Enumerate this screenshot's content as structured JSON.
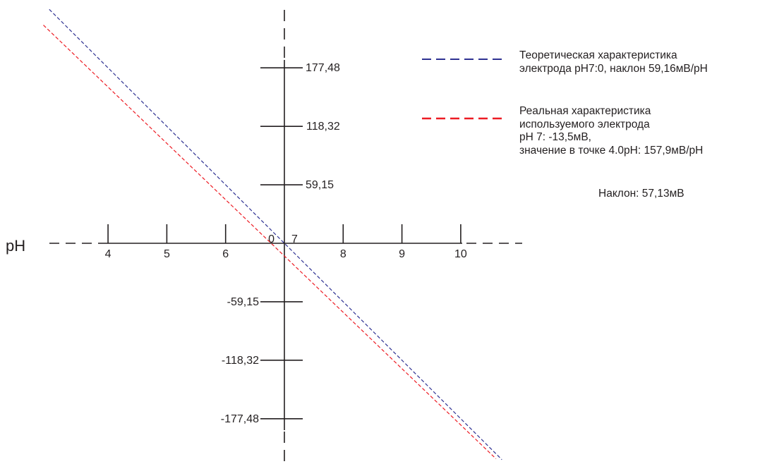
{
  "chart_data": {
    "type": "line",
    "title": "",
    "xlabel": "pH",
    "ylabel": "",
    "x_ticks": [
      4,
      5,
      6,
      7,
      8,
      9,
      10
    ],
    "x_tick_labels": [
      "4",
      "5",
      "6",
      "7",
      "8",
      "9",
      "10"
    ],
    "y_ticks": [
      177.48,
      118.32,
      59.15,
      -59.15,
      -118.32,
      -177.48
    ],
    "y_tick_labels": [
      "177,48",
      "118,32",
      "59,15",
      "-59,15",
      "-118,32",
      "-177,48"
    ],
    "origin_labels": [
      "0",
      "7"
    ],
    "xlim": [
      2.9,
      11.0
    ],
    "ylim": [
      -218,
      201
    ],
    "grid": false,
    "legend_position": "top-right",
    "series": [
      {
        "name": "Теоретическая характеристика электрода pH7:0, наклон 59,16мВ/pH",
        "color": "#2e3192",
        "x": [
          3.0,
          10.7
        ],
        "y": [
          236.64,
          -218.89
        ]
      },
      {
        "name": "Реальная характеристика используемого электрода pH 7: -13,5мВ, значение в точке 4.0pH: 157,9мВ/pH",
        "color": "#ed1c24",
        "x": [
          2.9,
          10.6
        ],
        "y": [
          220.7,
          -218.0
        ]
      }
    ]
  },
  "legend": {
    "theoretical": {
      "lines": [
        "Теоретическая характеристика",
        "электрода pH7:0, наклон 59,16мВ/pH"
      ],
      "color": "#2e3192"
    },
    "real": {
      "lines": [
        "Реальная характеристика",
        "используемого электрода",
        "pH 7: -13,5мВ,",
        "значение в точке 4.0pH: 157,9мВ/pH"
      ],
      "color": "#ed1c24"
    },
    "slope_note": "Наклон: 57,13мВ"
  },
  "colors": {
    "axis": "#231f20",
    "theoretical": "#2e3192",
    "real": "#ed1c24"
  }
}
